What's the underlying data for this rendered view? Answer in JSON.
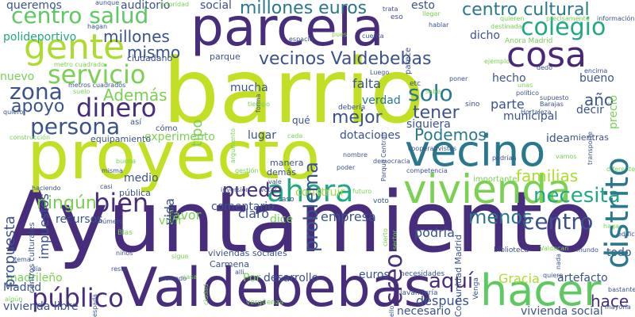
{
  "colors": {
    "background": "#ffffff",
    "dark_purple": "#440154",
    "indigo": "#482878",
    "blue": "#3e4a89",
    "slate": "#31688e",
    "teal": "#26828e",
    "green_teal": "#1f9e89",
    "green": "#35b779",
    "lime": "#6ece58",
    "yellow_green": "#b5de2b",
    "yellow": "#fde725"
  },
  "words": [
    {
      "text": "Ayuntamiento",
      "color": "#472d7b"
    },
    {
      "text": "barrio",
      "color": "#c2df23"
    },
    {
      "text": "proyecto",
      "color": "#c2df23"
    },
    {
      "text": "parcela",
      "color": "#472d7b"
    },
    {
      "text": "Valdebebas",
      "color": "#472d7b"
    },
    {
      "text": "vecino",
      "color": "#2a788e"
    },
    {
      "text": "vivienda",
      "color": "#7ad151"
    },
    {
      "text": "hacer",
      "color": "#5ec962"
    },
    {
      "text": "gente",
      "color": "#addc30"
    },
    {
      "text": "cosa",
      "color": "#482878"
    },
    {
      "text": "centro salud",
      "color": "#5ec962"
    },
    {
      "text": "millones euros",
      "color": "#2a788e"
    },
    {
      "text": "centro cultural",
      "color": "#2a788e"
    },
    {
      "text": "colegio",
      "color": "#22a884"
    },
    {
      "text": "vecinos Valdebebas",
      "color": "#3b528b"
    },
    {
      "text": "servicio",
      "color": "#7ad151"
    },
    {
      "text": "zona",
      "color": "#3b528b"
    },
    {
      "text": "dinero",
      "color": "#472d7b"
    },
    {
      "text": "persona",
      "color": "#3b528b"
    },
    {
      "text": "apoyo",
      "color": "#3b528b"
    },
    {
      "text": "Además",
      "color": "#7ad151"
    },
    {
      "text": "solo",
      "color": "#2a788e"
    },
    {
      "text": "tener",
      "color": "#3b528b"
    },
    {
      "text": "mejor",
      "color": "#3b528b"
    },
    {
      "text": "distrito",
      "color": "#2a788e"
    },
    {
      "text": "problema",
      "color": "#3b528b"
    },
    {
      "text": "ahora",
      "color": "#22a884"
    },
    {
      "text": "bien",
      "color": "#472d7b"
    },
    {
      "text": "puede",
      "color": "#472d7b"
    },
    {
      "text": "público",
      "color": "#472d7b"
    },
    {
      "text": "aquí",
      "color": "#472d7b"
    },
    {
      "text": "Podemos",
      "color": "#2a788e"
    },
    {
      "text": "necesita",
      "color": "#22a884"
    },
    {
      "text": "menos",
      "color": "#2a788e"
    },
    {
      "text": "creo",
      "color": "#472d7b"
    },
    {
      "text": "hace",
      "color": "#472d7b"
    },
    {
      "text": "centro",
      "color": "#3b528b"
    },
    {
      "text": "año",
      "color": "#3b528b"
    },
    {
      "text": "parte",
      "color": "#3b528b"
    },
    {
      "text": "familias",
      "color": "#addc30"
    },
    {
      "text": "ningún",
      "color": "#7ad151"
    },
    {
      "text": "millones",
      "color": "#3b528b"
    },
    {
      "text": "mismo",
      "color": "#3b528b"
    },
    {
      "text": "queremos",
      "color": "#3b528b"
    },
    {
      "text": "polideportivo",
      "color": "#22a884"
    },
    {
      "text": "auditorio",
      "color": "#3b528b"
    },
    {
      "text": "social",
      "color": "#3b528b"
    },
    {
      "text": "esto",
      "color": "#3b528b"
    },
    {
      "text": "dicho",
      "color": "#3b528b"
    },
    {
      "text": "hecho",
      "color": "#3b528b"
    },
    {
      "text": "falta",
      "color": "#3b528b"
    },
    {
      "text": "nuevo",
      "color": "#7ad151"
    },
    {
      "text": "mucha",
      "color": "#3b528b"
    },
    {
      "text": "tipo",
      "color": "#7ad151"
    },
    {
      "text": "verdad",
      "color": "#2a788e"
    },
    {
      "text": "siquiera",
      "color": "#3b528b"
    },
    {
      "text": "municipal",
      "color": "#3b528b"
    },
    {
      "text": "idea",
      "color": "#3b528b"
    },
    {
      "text": "decir",
      "color": "#3b528b"
    },
    {
      "text": "bueno",
      "color": "#3b528b"
    },
    {
      "text": "experimento",
      "color": "#7ad151"
    },
    {
      "text": "dotaciones",
      "color": "#3b528b"
    },
    {
      "text": "lugar",
      "color": "#3b528b"
    },
    {
      "text": "propuesta",
      "color": "#3b528b"
    },
    {
      "text": "impuestos",
      "color": "#3b528b"
    },
    {
      "text": "medio",
      "color": "#3b528b"
    },
    {
      "text": "vida",
      "color": "#3b528b"
    },
    {
      "text": "favor",
      "color": "#7ad151"
    },
    {
      "text": "recursos",
      "color": "#3b528b"
    },
    {
      "text": "vivir",
      "color": "#7ad151"
    },
    {
      "text": "claro",
      "color": "#3b528b"
    },
    {
      "text": "dice",
      "color": "#7ad151"
    },
    {
      "text": "comentario",
      "color": "#3b528b"
    },
    {
      "text": "construir",
      "color": "#addc30"
    },
    {
      "text": "empresa",
      "color": "#3b528b"
    },
    {
      "text": "podría",
      "color": "#3b528b"
    },
    {
      "text": "Gracia",
      "color": "#addc30"
    },
    {
      "text": "artefacto",
      "color": "#3b528b"
    },
    {
      "text": "madrileño",
      "color": "#7ad151"
    },
    {
      "text": "Madrid",
      "color": "#3b528b"
    },
    {
      "text": "vivienda libre",
      "color": "#3b528b"
    },
    {
      "text": "después",
      "color": "#3b528b"
    },
    {
      "text": "necesario",
      "color": "#3b528b"
    },
    {
      "text": "vivienda social",
      "color": "#3b528b"
    },
    {
      "text": "euros",
      "color": "#3b528b"
    },
    {
      "text": "desarrollo",
      "color": "#3b528b"
    },
    {
      "text": "Por",
      "color": "#7ad151"
    },
    {
      "text": "todo",
      "color": "#3b528b"
    },
    {
      "text": "Comunidad Madrid",
      "color": "#3b528b"
    },
    {
      "text": "parque",
      "color": "#3b528b"
    },
    {
      "text": "ciudadano",
      "color": "#3b528b"
    },
    {
      "text": "equipamiento",
      "color": "#3b528b"
    },
    {
      "text": "precio",
      "color": "#7ad151"
    },
    {
      "text": "Carmena",
      "color": "#3b528b"
    },
    {
      "text": "viviendas sociales",
      "color": "#3b528b"
    },
    {
      "text": "espacio",
      "color": "#3b528b"
    },
    {
      "text": "metros cuadrados",
      "color": "#3b528b"
    },
    {
      "text": "metro cuadrado",
      "color": "#7ad151"
    },
    {
      "text": "qué",
      "color": "#3b528b"
    },
    {
      "text": "mientras",
      "color": "#3b528b"
    },
    {
      "text": "Anora Madrid",
      "color": "#7ad151"
    },
    {
      "text": "precisamente",
      "color": "#7ad151"
    },
    {
      "text": "información",
      "color": "#3b528b"
    },
    {
      "text": "destinada",
      "color": "#7ad151"
    },
    {
      "text": "quieren",
      "color": "#7ad151"
    },
    {
      "text": "hablar",
      "color": "#3b528b"
    },
    {
      "text": "parece",
      "color": "#3b528b"
    },
    {
      "text": "prioridad",
      "color": "#7ad151"
    },
    {
      "text": "aunque",
      "color": "#3b528b"
    },
    {
      "text": "llegar",
      "color": "#7ad151"
    },
    {
      "text": "trata",
      "color": "#3b528b"
    },
    {
      "text": "eso",
      "color": "#3b528b"
    },
    {
      "text": "sino",
      "color": "#3b528b"
    },
    {
      "text": "etc",
      "color": "#3b528b"
    },
    {
      "text": "poner",
      "color": "#3b528b"
    },
    {
      "text": "Luego",
      "color": "#3b528b"
    },
    {
      "text": "debería",
      "color": "#3b528b"
    },
    {
      "text": "Parque Central",
      "color": "#3b528b"
    },
    {
      "text": "suelo",
      "color": "#7ad151"
    },
    {
      "text": "quiero",
      "color": "#3b528b"
    },
    {
      "text": "construcción",
      "color": "#7ad151"
    },
    {
      "text": "centros culturales",
      "color": "#3b528b"
    },
    {
      "text": "cómo",
      "color": "#3b528b"
    },
    {
      "text": "así",
      "color": "#3b528b"
    },
    {
      "text": "cada",
      "color": "#7ad151"
    },
    {
      "text": "manera",
      "color": "#3b528b"
    },
    {
      "text": "demás",
      "color": "#3b528b"
    },
    {
      "text": "nombre",
      "color": "#3b528b"
    },
    {
      "text": "poder",
      "color": "#3b528b"
    },
    {
      "text": "democracia",
      "color": "#3b528b"
    },
    {
      "text": "competencia",
      "color": "#3b528b"
    },
    {
      "text": "importante",
      "color": "#7ad151"
    },
    {
      "text": "podrían",
      "color": "#3b528b"
    },
    {
      "text": "vamos",
      "color": "#7ad151"
    },
    {
      "text": "misma",
      "color": "#3b528b"
    },
    {
      "text": "casi",
      "color": "#3b528b"
    },
    {
      "text": "pública",
      "color": "#3b528b"
    },
    {
      "text": "inversión",
      "color": "#3b528b"
    },
    {
      "text": "votar",
      "color": "#3b528b"
    },
    {
      "text": "gestión",
      "color": "#7ad151"
    },
    {
      "text": "vale",
      "color": "#3b528b"
    },
    {
      "text": "futuro",
      "color": "#7ad151"
    },
    {
      "text": "voto",
      "color": "#3b528b"
    },
    {
      "text": "caso",
      "color": "#3b528b"
    },
    {
      "text": "cierto",
      "color": "#7ad151"
    },
    {
      "text": "sector",
      "color": "#7ad151"
    },
    {
      "text": "Venga",
      "color": "#3b528b"
    },
    {
      "text": "biblioteca",
      "color": "#3b528b"
    },
    {
      "text": "nada",
      "color": "#3b528b"
    },
    {
      "text": "mundo",
      "color": "#3b528b"
    },
    {
      "text": "quiere",
      "color": "#3b528b"
    },
    {
      "text": "necesidades",
      "color": "#3b528b"
    },
    {
      "text": "lavandería",
      "color": "#3b528b"
    },
    {
      "text": "ello",
      "color": "#7ad151"
    },
    {
      "text": "vergüenza",
      "color": "#7ad151"
    },
    {
      "text": "casa",
      "color": "#3b528b"
    },
    {
      "text": "mercado",
      "color": "#7ad151"
    },
    {
      "text": "ciudad",
      "color": "#3b528b"
    },
    {
      "text": "alli",
      "color": "#7ad151"
    },
    {
      "text": "sigue",
      "color": "#3b528b"
    },
    {
      "text": "niños",
      "color": "#3b528b"
    },
    {
      "text": "resto",
      "color": "#3b528b"
    },
    {
      "text": "día",
      "color": "#3b528b"
    },
    {
      "text": "espada",
      "color": "#7ad151"
    },
    {
      "text": "algún",
      "color": "#3b528b"
    },
    {
      "text": "edificio",
      "color": "#3b528b"
    },
    {
      "text": "bastante",
      "color": "#3b528b"
    },
    {
      "text": "mayoría",
      "color": "#7ad151"
    },
    {
      "text": "diferente",
      "color": "#3b528b"
    },
    {
      "text": "transporte",
      "color": "#3b528b"
    },
    {
      "text": "político",
      "color": "#3b528b"
    },
    {
      "text": "supuesto",
      "color": "#3b528b"
    },
    {
      "text": "Barajas",
      "color": "#3b528b"
    },
    {
      "text": "Hortaleza",
      "color": "#7ad151"
    },
    {
      "text": "tiempo",
      "color": "#3b528b"
    },
    {
      "text": "forma",
      "color": "#3b528b"
    },
    {
      "text": "cuenta",
      "color": "#7ad151"
    },
    {
      "text": "pues",
      "color": "#3b528b"
    },
    {
      "text": "hagan",
      "color": "#3b528b"
    },
    {
      "text": "encima",
      "color": "#7ad151"
    },
    {
      "text": "unas",
      "color": "#3b528b"
    },
    {
      "text": "dedo",
      "color": "#7ad151"
    },
    {
      "text": "ejemplo",
      "color": "#3b528b"
    },
    {
      "text": "tema",
      "color": "#3b528b"
    },
    {
      "text": "número",
      "color": "#3b528b"
    },
    {
      "text": "haciendo",
      "color": "#3b528b"
    },
    {
      "text": "cooperativistas",
      "color": "#7ad151"
    },
    {
      "text": "argumento",
      "color": "#7ad151"
    },
    {
      "text": "haga",
      "color": "#7ad151"
    },
    {
      "text": "Blas",
      "color": "#7ad151"
    },
    {
      "text": "sabe",
      "color": "#7ad151"
    },
    {
      "text": "Valdecan",
      "color": "#7ad151"
    },
    {
      "text": "buena",
      "color": "#7ad151"
    }
  ]
}
